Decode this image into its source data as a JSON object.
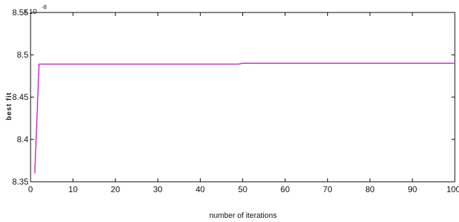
{
  "chart_data": {
    "type": "line",
    "xlabel": "number of iterations",
    "ylabel": "best fit",
    "y_multiplier_base": "x 10",
    "y_multiplier_exp": "-8",
    "xlim": [
      0,
      100
    ],
    "ylim": [
      8.35,
      8.55
    ],
    "xticks": [
      0,
      10,
      20,
      30,
      40,
      50,
      60,
      70,
      80,
      90,
      100
    ],
    "xtick_labels": [
      "0",
      "10",
      "20",
      "30",
      "40",
      "50",
      "60",
      "70",
      "80",
      "90",
      "100"
    ],
    "yticks": [
      8.35,
      8.4,
      8.45,
      8.5,
      8.55
    ],
    "ytick_labels": [
      "8.35",
      "8.4",
      "8.45",
      "8.5",
      "8.55"
    ],
    "grid": false,
    "legend": "none",
    "series": [
      {
        "color": "#cc33cc",
        "x": [
          1,
          2,
          3,
          49,
          50,
          100
        ],
        "y": [
          8.36,
          8.489,
          8.489,
          8.489,
          8.49,
          8.49
        ]
      }
    ]
  }
}
